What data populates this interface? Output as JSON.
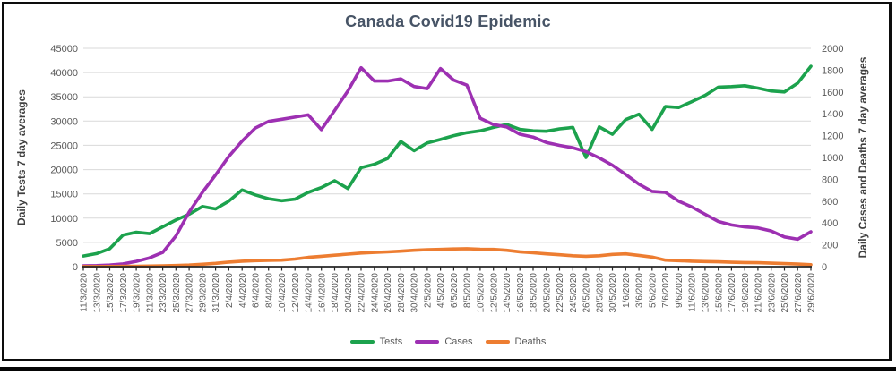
{
  "title": "Canada Covid19 Epidemic",
  "left_axis": {
    "title": "Daily Tests 7 day averages",
    "min": 0,
    "max": 45000,
    "step": 5000,
    "tick_labels": [
      "0",
      "5000",
      "10000",
      "15000",
      "20000",
      "25000",
      "30000",
      "35000",
      "40000",
      "45000"
    ]
  },
  "right_axis": {
    "title": "Daily Cases and Deaths 7 day averages",
    "min": 0,
    "max": 2000,
    "step": 200,
    "tick_labels": [
      "0",
      "200",
      "400",
      "600",
      "800",
      "1000",
      "1200",
      "1400",
      "1600",
      "1800",
      "2000"
    ]
  },
  "colors": {
    "tests": "#1CA24D",
    "cases": "#9D30B2",
    "deaths": "#ED7D31",
    "grid": "#D9D9D9",
    "axis_line": "#262626",
    "tick_text": "#595959",
    "axis_title_text": "#3F3F3F",
    "title_text": "#475466"
  },
  "chart_data": {
    "type": "line",
    "grid": true,
    "legend_position": "bottom",
    "left_ylim": [
      0,
      45000
    ],
    "right_ylim": [
      0,
      2000
    ],
    "x_labels": [
      "11/3/2020",
      "13/3/2020",
      "15/3/2020",
      "17/3/2020",
      "19/3/2020",
      "21/3/2020",
      "23/3/2020",
      "25/3/2020",
      "27/3/2020",
      "29/3/2020",
      "31/3/2020",
      "2/4/2020",
      "4/4/2020",
      "6/4/2020",
      "8/4/2020",
      "10/4/2020",
      "12/4/2020",
      "14/4/2020",
      "16/4/2020",
      "18/4/2020",
      "20/4/2020",
      "22/4/2020",
      "24/4/2020",
      "26/4/2020",
      "28/4/2020",
      "30/4/2020",
      "2/5/2020",
      "4/5/2020",
      "6/5/2020",
      "8/5/2020",
      "10/5/2020",
      "12/5/2020",
      "14/5/2020",
      "16/5/2020",
      "18/5/2020",
      "20/5/2020",
      "22/5/2020",
      "24/5/2020",
      "26/5/2020",
      "28/5/2020",
      "30/5/2020",
      "1/6/2020",
      "3/6/2020",
      "5/6/2020",
      "7/6/2020",
      "9/6/2020",
      "11/6/2020",
      "13/6/2020",
      "15/6/2020",
      "17/6/2020",
      "19/6/2020",
      "21/6/2020",
      "23/6/2020",
      "25/6/2020",
      "27/6/2020",
      "29/6/2020"
    ],
    "series": [
      {
        "name": "Tests",
        "axis": "left",
        "color": "#1CA24D",
        "values": [
          2200,
          2700,
          3700,
          6500,
          7100,
          6800,
          8200,
          9600,
          10800,
          12400,
          11900,
          13500,
          15800,
          14800,
          14000,
          13600,
          13900,
          15300,
          16300,
          17700,
          16100,
          20400,
          21100,
          22300,
          25800,
          23900,
          25500,
          26200,
          27000,
          27600,
          28000,
          28700,
          29300,
          28300,
          28000,
          27900,
          28400,
          28700,
          22500,
          28800,
          27300,
          30300,
          31400,
          28300,
          33000,
          32800,
          34000,
          35300,
          37000,
          37100,
          37300,
          36800,
          36200,
          36000,
          37800,
          41300
        ]
      },
      {
        "name": "Cases",
        "axis": "right",
        "color": "#9D30B2",
        "values": [
          8,
          10,
          15,
          25,
          48,
          80,
          130,
          280,
          500,
          680,
          840,
          1010,
          1150,
          1270,
          1330,
          1350,
          1370,
          1390,
          1255,
          1430,
          1610,
          1822,
          1700,
          1700,
          1720,
          1650,
          1630,
          1815,
          1708,
          1662,
          1360,
          1302,
          1280,
          1213,
          1187,
          1138,
          1111,
          1089,
          1053,
          996,
          929,
          844,
          756,
          689,
          680,
          600,
          547,
          480,
          414,
          382,
          364,
          355,
          327,
          272,
          251,
          320
        ]
      },
      {
        "name": "Deaths",
        "axis": "right",
        "color": "#ED7D31",
        "values": [
          1,
          1,
          2,
          3,
          4,
          6,
          8,
          11,
          15,
          22,
          30,
          42,
          50,
          55,
          58,
          60,
          70,
          85,
          95,
          105,
          115,
          125,
          130,
          135,
          142,
          150,
          156,
          158,
          162,
          165,
          160,
          158,
          150,
          136,
          127,
          117,
          109,
          100,
          95,
          100,
          112,
          117,
          103,
          88,
          60,
          55,
          50,
          47,
          44,
          40,
          38,
          36,
          32,
          28,
          24,
          18
        ]
      }
    ]
  }
}
